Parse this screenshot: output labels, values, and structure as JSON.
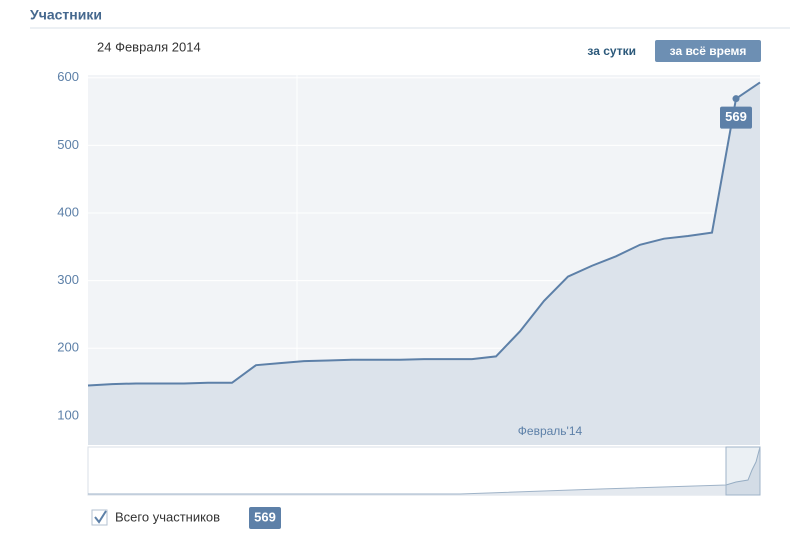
{
  "header": {
    "title": "Участники",
    "date": "24 Февраля 2014"
  },
  "controls": [
    "за сутки",
    "за всё время"
  ],
  "chart_data": {
    "type": "line",
    "x_axis_label": "Февраль'14",
    "categories": [
      null,
      null,
      null,
      null,
      null,
      null,
      null,
      null,
      null,
      null,
      null,
      null,
      null,
      null,
      null,
      null,
      null,
      null,
      null,
      null,
      null,
      null,
      null,
      null,
      null,
      null,
      null,
      null,
      null
    ],
    "series": [
      {
        "name": "Всего участников",
        "color": "#5d80a8",
        "values": [
          145,
          147,
          148,
          148,
          148,
          149,
          149,
          175,
          178,
          181,
          182,
          183,
          183,
          183,
          184,
          184,
          184,
          188,
          225,
          270,
          306,
          322,
          336,
          353,
          362,
          366,
          371,
          569,
          593
        ]
      }
    ],
    "ylim": [
      57,
      604
    ],
    "yticks": [
      100,
      200,
      300,
      400,
      500,
      600
    ],
    "grid": true
  }
}
